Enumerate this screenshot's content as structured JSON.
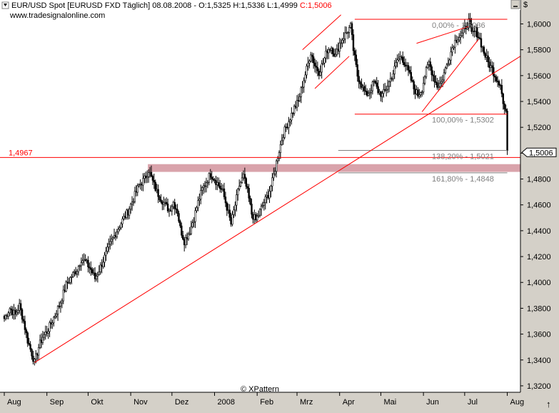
{
  "header": {
    "title": "EUR/USD Spot [EURUSD FXD  Täglich]",
    "date": "08.08.2008",
    "ohl": "- O:1,5325 H:1,5336 L:1,4999",
    "close": "C:1,5006",
    "website": "www.tradesignalonline.com"
  },
  "watermark": "© XPattern",
  "axis_unit": "$",
  "colors": {
    "background": "#ffffff",
    "frame": "#d4d0c8",
    "candle": "#000000",
    "trendline": "#ff0000",
    "support_band": "#d9a3ab",
    "fib_text": "#808080",
    "close_label": "#ff0000"
  },
  "chart_data": {
    "type": "candlestick",
    "ylim": [
      1.315,
      1.6185
    ],
    "y_ticks": [
      {
        "v": 1.6,
        "label": "1,6000"
      },
      {
        "v": 1.58,
        "label": "1,5800"
      },
      {
        "v": 1.56,
        "label": "1,5600"
      },
      {
        "v": 1.54,
        "label": "1,5400"
      },
      {
        "v": 1.52,
        "label": "1,5200"
      },
      {
        "v": 1.5,
        "label": "1,5000"
      },
      {
        "v": 1.48,
        "label": "1,4800"
      },
      {
        "v": 1.46,
        "label": "1,4600"
      },
      {
        "v": 1.44,
        "label": "1,4400"
      },
      {
        "v": 1.42,
        "label": "1,4200"
      },
      {
        "v": 1.4,
        "label": "1,4000"
      },
      {
        "v": 1.38,
        "label": "1,3800"
      },
      {
        "v": 1.36,
        "label": "1,3600"
      },
      {
        "v": 1.34,
        "label": "1,3400"
      },
      {
        "v": 1.32,
        "label": "1,3200"
      }
    ],
    "x_months": [
      {
        "label": "Aug",
        "d": 0
      },
      {
        "label": "Sep",
        "d": 31
      },
      {
        "label": "Okt",
        "d": 61
      },
      {
        "label": "Nov",
        "d": 92
      },
      {
        "label": "Dez",
        "d": 122
      },
      {
        "label": "2008",
        "d": 153
      },
      {
        "label": "Feb",
        "d": 184
      },
      {
        "label": "Mrz",
        "d": 213
      },
      {
        "label": "Apr",
        "d": 244
      },
      {
        "label": "Mai",
        "d": 274
      },
      {
        "label": "Jun",
        "d": 305
      },
      {
        "label": "Jul",
        "d": 335
      },
      {
        "label": "Aug",
        "d": 366
      }
    ],
    "anchors": [
      [
        0,
        1.372
      ],
      [
        4,
        1.38
      ],
      [
        8,
        1.375
      ],
      [
        11,
        1.382
      ],
      [
        14,
        1.37
      ],
      [
        17,
        1.355
      ],
      [
        20,
        1.345
      ],
      [
        22,
        1.338
      ],
      [
        25,
        1.35
      ],
      [
        28,
        1.358
      ],
      [
        31,
        1.362
      ],
      [
        34,
        1.368
      ],
      [
        37,
        1.375
      ],
      [
        41,
        1.385
      ],
      [
        45,
        1.398
      ],
      [
        49,
        1.405
      ],
      [
        53,
        1.41
      ],
      [
        56,
        1.418
      ],
      [
        59,
        1.416
      ],
      [
        63,
        1.41
      ],
      [
        66,
        1.403
      ],
      [
        70,
        1.412
      ],
      [
        74,
        1.422
      ],
      [
        78,
        1.432
      ],
      [
        82,
        1.44
      ],
      [
        86,
        1.448
      ],
      [
        90,
        1.455
      ],
      [
        94,
        1.465
      ],
      [
        98,
        1.475
      ],
      [
        102,
        1.48
      ],
      [
        105,
        1.487
      ],
      [
        108,
        1.478
      ],
      [
        111,
        1.47
      ],
      [
        114,
        1.465
      ],
      [
        117,
        1.46
      ],
      [
        120,
        1.456
      ],
      [
        123,
        1.462
      ],
      [
        126,
        1.455
      ],
      [
        128,
        1.442
      ],
      [
        131,
        1.432
      ],
      [
        135,
        1.44
      ],
      [
        138,
        1.45
      ],
      [
        141,
        1.462
      ],
      [
        144,
        1.472
      ],
      [
        147,
        1.478
      ],
      [
        150,
        1.484
      ],
      [
        153,
        1.48
      ],
      [
        156,
        1.475
      ],
      [
        159,
        1.47
      ],
      [
        162,
        1.458
      ],
      [
        165,
        1.445
      ],
      [
        168,
        1.46
      ],
      [
        171,
        1.475
      ],
      [
        174,
        1.482
      ],
      [
        177,
        1.47
      ],
      [
        180,
        1.453
      ],
      [
        183,
        1.448
      ],
      [
        186,
        1.455
      ],
      [
        189,
        1.462
      ],
      [
        192,
        1.468
      ],
      [
        195,
        1.478
      ],
      [
        199,
        1.498
      ],
      [
        203,
        1.515
      ],
      [
        207,
        1.525
      ],
      [
        211,
        1.535
      ],
      [
        214,
        1.54
      ],
      [
        217,
        1.553
      ],
      [
        220,
        1.565
      ],
      [
        223,
        1.578
      ],
      [
        226,
        1.568
      ],
      [
        229,
        1.563
      ],
      [
        232,
        1.57
      ],
      [
        235,
        1.58
      ],
      [
        238,
        1.582
      ],
      [
        241,
        1.575
      ],
      [
        244,
        1.585
      ],
      [
        247,
        1.59
      ],
      [
        250,
        1.595
      ],
      [
        252,
        1.598
      ],
      [
        254,
        1.58
      ],
      [
        257,
        1.56
      ],
      [
        260,
        1.553
      ],
      [
        263,
        1.545
      ],
      [
        266,
        1.548
      ],
      [
        269,
        1.555
      ],
      [
        272,
        1.548
      ],
      [
        275,
        1.545
      ],
      [
        277,
        1.548
      ],
      [
        280,
        1.555
      ],
      [
        283,
        1.562
      ],
      [
        286,
        1.572
      ],
      [
        289,
        1.575
      ],
      [
        292,
        1.568
      ],
      [
        295,
        1.56
      ],
      [
        298,
        1.55
      ],
      [
        301,
        1.545
      ],
      [
        304,
        1.55
      ],
      [
        306,
        1.56
      ],
      [
        309,
        1.57
      ],
      [
        312,
        1.56
      ],
      [
        315,
        1.552
      ],
      [
        318,
        1.555
      ],
      [
        321,
        1.565
      ],
      [
        324,
        1.575
      ],
      [
        327,
        1.585
      ],
      [
        330,
        1.59
      ],
      [
        333,
        1.592
      ],
      [
        336,
        1.598
      ],
      [
        338,
        1.602
      ],
      [
        340,
        1.592
      ],
      [
        343,
        1.595
      ],
      [
        346,
        1.588
      ],
      [
        349,
        1.578
      ],
      [
        352,
        1.57
      ],
      [
        355,
        1.565
      ],
      [
        358,
        1.558
      ],
      [
        361,
        1.554
      ],
      [
        363,
        1.538
      ],
      [
        365,
        1.53
      ],
      [
        366,
        1.502
      ]
    ],
    "fib_levels": [
      {
        "value": 1.6036,
        "label": "0,00% - 1,6036"
      },
      {
        "value": 1.5302,
        "label": "100,00% - 1,5302"
      },
      {
        "value": 1.5021,
        "label": "138,20% - 1,5021"
      },
      {
        "value": 1.4848,
        "label": "161,80% - 1,4848"
      }
    ],
    "support": {
      "value": 1.4967,
      "label": "1,4967"
    },
    "support_band": [
      1.4855,
      1.4915
    ],
    "close": {
      "value": 1.5006,
      "label": "1,5006"
    },
    "trendlines": [
      {
        "d1": 22,
        "v1": 1.338,
        "d2": 386,
        "v2": 1.575
      },
      {
        "d1": 217,
        "v1": 1.58,
        "d2": 245,
        "v2": 1.607
      },
      {
        "d1": 226,
        "v1": 1.55,
        "d2": 251,
        "v2": 1.575
      },
      {
        "d1": 300,
        "v1": 1.585,
        "d2": 338,
        "v2": 1.598
      },
      {
        "d1": 304,
        "v1": 1.532,
        "d2": 345,
        "v2": 1.588
      }
    ]
  }
}
